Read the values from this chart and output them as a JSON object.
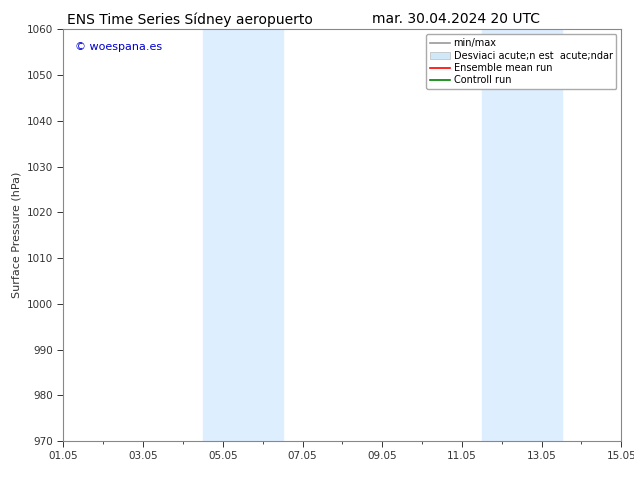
{
  "title_left": "ENS Time Series Sídney aeropuerto",
  "title_right": "mar. 30.04.2024 20 UTC",
  "ylabel": "Surface Pressure (hPa)",
  "ylim": [
    970,
    1060
  ],
  "yticks": [
    970,
    980,
    990,
    1000,
    1010,
    1020,
    1030,
    1040,
    1050,
    1060
  ],
  "xlim_start": 0,
  "xlim_end": 14,
  "xtick_labels": [
    "01.05",
    "03.05",
    "05.05",
    "07.05",
    "09.05",
    "11.05",
    "13.05",
    "15.05"
  ],
  "xtick_positions": [
    0,
    2,
    4,
    6,
    8,
    10,
    12,
    14
  ],
  "shaded_regions": [
    {
      "x_start": 3.5,
      "x_end": 4.5,
      "color": "#ddeeff"
    },
    {
      "x_start": 4.5,
      "x_end": 5.5,
      "color": "#ddeeff"
    },
    {
      "x_start": 10.5,
      "x_end": 11.5,
      "color": "#ddeeff"
    },
    {
      "x_start": 11.5,
      "x_end": 12.5,
      "color": "#ddeeff"
    }
  ],
  "watermark_text": "© woespana.es",
  "watermark_color": "#0000cc",
  "legend_label_minmax": "min/max",
  "legend_label_desv": "Desviaci acute;n est  acute;ndar",
  "legend_label_ensemble": "Ensemble mean run",
  "legend_label_control": "Controll run",
  "legend_color_minmax": "#999999",
  "legend_color_desv": "#d0e8f8",
  "legend_color_ensemble": "#ff0000",
  "legend_color_control": "#008000",
  "bg_color": "#ffffff",
  "spine_color": "#888888",
  "tick_color": "#333333",
  "title_fontsize": 10,
  "tick_fontsize": 7.5,
  "ylabel_fontsize": 8,
  "legend_fontsize": 7
}
